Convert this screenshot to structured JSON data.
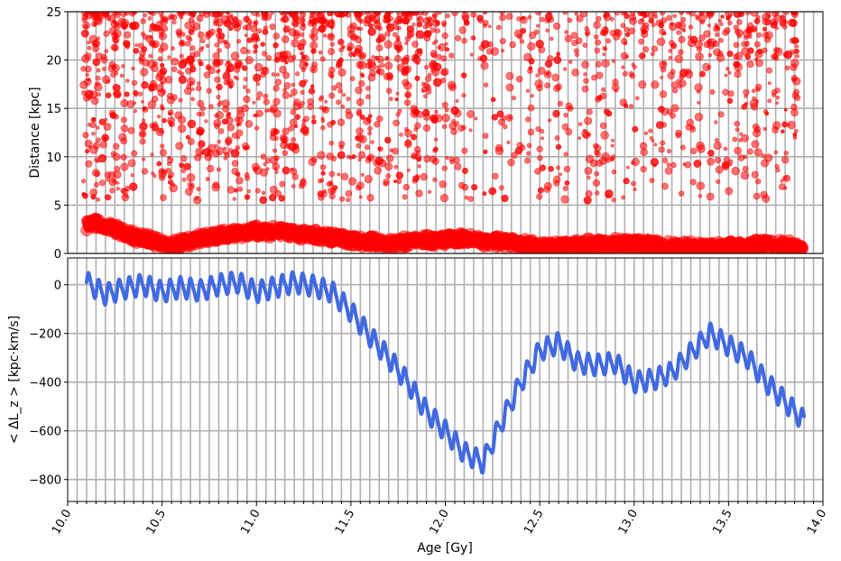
{
  "chart_data": [
    {
      "type": "scatter",
      "panel": "top",
      "ylabel": "Distance  [kpc]",
      "xlim": [
        10.0,
        14.0
      ],
      "ylim": [
        0,
        25
      ],
      "yticks": [
        "0",
        "5",
        "10",
        "15",
        "20",
        "25"
      ],
      "grid": true,
      "marker_color": "#ff0000",
      "series": [
        {
          "description_band": "inner",
          "x": [
            10.1,
            10.15,
            10.2,
            10.25,
            10.3,
            10.35,
            10.4,
            10.45,
            10.5,
            10.55,
            10.6,
            10.65,
            10.7,
            10.75,
            10.8,
            10.85,
            10.9,
            10.95,
            11.0,
            11.05,
            11.1,
            11.15,
            11.2,
            11.25,
            11.3,
            11.35,
            11.4,
            11.45,
            11.5,
            11.55,
            11.6,
            11.65,
            11.7,
            11.75,
            11.8,
            11.85,
            11.9,
            11.95,
            12.0,
            12.05,
            12.1,
            12.15,
            12.2,
            12.25,
            12.3,
            12.35,
            12.4,
            12.45,
            12.5,
            12.55,
            12.6,
            12.65,
            12.7,
            12.75,
            12.8,
            12.85,
            12.9,
            12.95,
            13.0,
            13.05,
            13.1,
            13.15,
            13.2,
            13.25,
            13.3,
            13.35,
            13.4,
            13.45,
            13.5,
            13.55,
            13.6,
            13.65,
            13.7,
            13.75,
            13.8,
            13.85,
            13.9
          ],
          "y": [
            2.8,
            3.2,
            2.7,
            2.5,
            2.0,
            1.8,
            1.5,
            1.3,
            1.0,
            0.9,
            1.0,
            1.3,
            1.5,
            1.7,
            1.9,
            2.0,
            2.1,
            2.2,
            2.3,
            2.2,
            2.3,
            2.2,
            2.1,
            2.0,
            1.9,
            1.8,
            1.7,
            1.5,
            1.3,
            1.2,
            1.2,
            1.1,
            1.0,
            1.1,
            1.3,
            1.5,
            1.4,
            1.3,
            1.4,
            1.5,
            1.5,
            1.4,
            1.3,
            1.3,
            1.2,
            1.1,
            0.9,
            0.8,
            0.7,
            0.7,
            0.8,
            0.8,
            0.9,
            0.9,
            1.0,
            1.0,
            1.0,
            1.0,
            1.0,
            0.9,
            0.9,
            0.8,
            0.7,
            0.7,
            0.7,
            0.6,
            0.6,
            0.6,
            0.7,
            0.7,
            0.8,
            0.9,
            0.9,
            0.9,
            0.8,
            0.7,
            0.6
          ]
        }
      ]
    },
    {
      "type": "line",
      "panel": "bottom",
      "xlabel": "Age  [Gy]",
      "ylabel": "< ΔL_z >  [kpc·km/s]",
      "xlim": [
        10.0,
        14.0
      ],
      "ylim": [
        -890,
        110
      ],
      "xticks": [
        "10.0",
        "10.5",
        "11.0",
        "11.5",
        "12.0",
        "12.5",
        "13.0",
        "13.5",
        "14.0"
      ],
      "yticks": [
        "0",
        "−200",
        "−400",
        "−600",
        "−800"
      ],
      "grid": true,
      "line_color": "#4169e1",
      "x_range": [
        10.1,
        13.9
      ],
      "trend": {
        "x": [
          10.1,
          10.2,
          10.3,
          10.4,
          10.5,
          10.6,
          10.7,
          10.8,
          10.9,
          11.0,
          11.1,
          11.2,
          11.3,
          11.4,
          11.5,
          11.6,
          11.7,
          11.8,
          11.9,
          12.0,
          12.1,
          12.2,
          12.3,
          12.4,
          12.5,
          12.6,
          12.7,
          12.8,
          12.9,
          13.0,
          13.1,
          13.2,
          13.3,
          13.4,
          13.5,
          13.6,
          13.7,
          13.8,
          13.9
        ],
        "y": [
          10,
          -40,
          -15,
          0,
          -30,
          -10,
          -25,
          0,
          10,
          -30,
          -10,
          10,
          -5,
          -30,
          -110,
          -210,
          -300,
          -400,
          -520,
          -600,
          -690,
          -730,
          -560,
          -400,
          -270,
          -240,
          -320,
          -330,
          -320,
          -400,
          -390,
          -360,
          -280,
          -200,
          -250,
          -300,
          -400,
          -480,
          -560
        ]
      },
      "oscillation_period": 0.054,
      "oscillation_amplitude": 40
    }
  ]
}
